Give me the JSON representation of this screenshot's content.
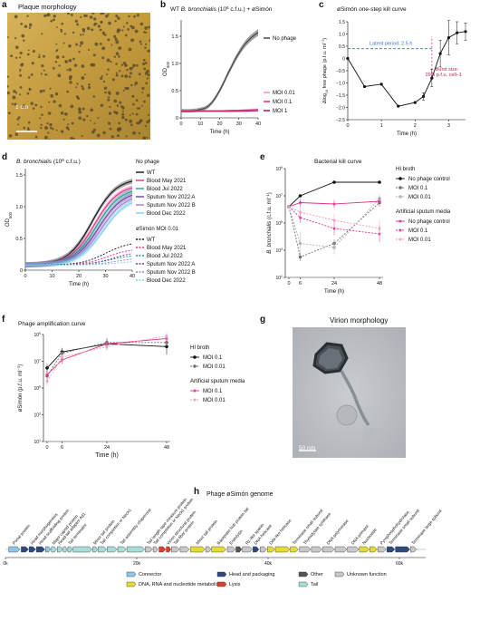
{
  "panels": {
    "a": {
      "letter": "a",
      "title": "Plaque morphology",
      "scale_label": "1 cm"
    },
    "b": {
      "letter": "b"
    },
    "c": {
      "letter": "c"
    },
    "d": {
      "letter": "d"
    },
    "e": {
      "letter": "e"
    },
    "f": {
      "letter": "f"
    },
    "g": {
      "letter": "g",
      "title": "Virion morphology",
      "scale_label": "50 nm"
    },
    "h": {
      "letter": "h"
    }
  },
  "colors": {
    "black": "#111111",
    "gray": "#7a7a7a",
    "lightgray": "#bdbdbd",
    "pink": "#e0338a",
    "lightpink": "#f29ac4",
    "magenta": "#c2185b",
    "dark_magenta": "#8b1a4a",
    "teal": "#1e9c8c",
    "purple": "#6b3fa0",
    "violet": "#9b7fd0",
    "lightblue": "#7fd0e8",
    "blue_dash": "#3a6fd8"
  },
  "chart_data": [
    {
      "id": "b",
      "type": "line",
      "title": "WT B. bronchialis (10^6 c.f.u.) + øSimón",
      "title_parts": [
        "WT ",
        "B. bronchialis",
        " (10",
        "6",
        " c.f.u.) + øSimón"
      ],
      "xlabel": "Time (h)",
      "ylabel": "OD600",
      "ylabel_main": "OD",
      "ylabel_sub": "600",
      "xlim": [
        0,
        40
      ],
      "ylim": [
        0,
        1.8
      ],
      "xticks": [
        "0",
        "10",
        "20",
        "30",
        "40"
      ],
      "yticks": [
        "0",
        "0.5",
        "1.0",
        "1.5"
      ],
      "legend_top": [
        "No phage"
      ],
      "legend_bottom": [
        "MOI 0.01",
        "MOI 0.1",
        "MOI 1"
      ],
      "series": [
        {
          "name": "No phage",
          "x": [
            0,
            4,
            8,
            12,
            14,
            16,
            18,
            20,
            22,
            24,
            26,
            28,
            30,
            32,
            34,
            36,
            38,
            40
          ],
          "y": [
            0.13,
            0.13,
            0.14,
            0.17,
            0.21,
            0.28,
            0.38,
            0.5,
            0.64,
            0.79,
            0.93,
            1.07,
            1.19,
            1.3,
            1.39,
            1.46,
            1.52,
            1.57
          ]
        },
        {
          "name": "MOI 0.01",
          "x": [
            0,
            10,
            20,
            30,
            40
          ],
          "y": [
            0.13,
            0.13,
            0.13,
            0.14,
            0.16
          ]
        },
        {
          "name": "MOI 0.1",
          "x": [
            0,
            10,
            20,
            30,
            40
          ],
          "y": [
            0.13,
            0.13,
            0.13,
            0.14,
            0.15
          ]
        },
        {
          "name": "MOI 1",
          "x": [
            0,
            10,
            20,
            30,
            40
          ],
          "y": [
            0.12,
            0.12,
            0.12,
            0.12,
            0.13
          ]
        }
      ]
    },
    {
      "id": "c",
      "type": "line",
      "title": "øSimón one-step kill curve",
      "xlabel": "Time (h)",
      "ylabel": "Δlog10 free phage (p.f.u. ml−1)",
      "xlim": [
        0,
        3.5
      ],
      "ylim": [
        -2.5,
        1.5
      ],
      "xticks": [
        "0",
        "1",
        "2",
        "3"
      ],
      "yticks": [
        "−2.5",
        "−2.0",
        "−1.5",
        "−1.0",
        "−0.5",
        "0",
        "0.5",
        "1.0",
        "1.5"
      ],
      "annotation_latent": "Latent period: 2.5 h",
      "annotation_burst_1": "Burst size:",
      "annotation_burst_2": "29.5 p.f.u. cell−1",
      "series": [
        {
          "name": "",
          "x": [
            0,
            0.5,
            1.0,
            1.5,
            2.0,
            2.25,
            2.5,
            2.75,
            3.0,
            3.25,
            3.5
          ],
          "y": [
            0,
            -1.15,
            -1.05,
            -1.95,
            -1.8,
            -1.55,
            -0.8,
            0.2,
            0.85,
            1.05,
            1.1
          ]
        }
      ]
    },
    {
      "id": "d",
      "type": "line",
      "title": "B. bronchialis (10^6 c.f.u.)",
      "xlabel": "Time (h)",
      "ylabel": "OD600",
      "xlim": [
        0,
        40
      ],
      "ylim": [
        0,
        1.6
      ],
      "xticks": [
        "0",
        "10",
        "20",
        "30",
        "40"
      ],
      "yticks": [
        "0",
        "0.5",
        "1.0",
        "1.5"
      ],
      "legend_group_1": "No phage",
      "legend_group_2": "øSimón MOI 0.01",
      "strains": [
        "WT",
        "Blood May 2021",
        "Blood Jul 2022",
        "Sputum Nov 2022 A",
        "Sputum Nov 2022 B",
        "Blood Dec 2022"
      ],
      "series": [
        {
          "name": "WT",
          "group": "No phage",
          "final": 1.45
        },
        {
          "name": "Blood May 2021",
          "group": "No phage",
          "final": 1.35
        },
        {
          "name": "Blood Jul 2022",
          "group": "No phage",
          "final": 1.3
        },
        {
          "name": "Sputum Nov 2022 A",
          "group": "No phage",
          "final": 1.25
        },
        {
          "name": "Sputum Nov 2022 B",
          "group": "No phage",
          "final": 1.2
        },
        {
          "name": "Blood Dec 2022",
          "group": "No phage",
          "final": 1.15
        },
        {
          "name": "WT",
          "group": "øSimón MOI 0.01",
          "final": 0.45
        },
        {
          "name": "Blood May 2021",
          "group": "øSimón MOI 0.01",
          "final": 0.35
        },
        {
          "name": "Blood Jul 2022",
          "group": "øSimón MOI 0.01",
          "final": 0.25
        },
        {
          "name": "Sputum Nov 2022 A",
          "group": "øSimón MOI 0.01",
          "final": 0.3
        },
        {
          "name": "Sputum Nov 2022 B",
          "group": "øSimón MOI 0.01",
          "final": 0.2
        },
        {
          "name": "Blood Dec 2022",
          "group": "øSimón MOI 0.01",
          "final": 0.15
        }
      ]
    },
    {
      "id": "e",
      "type": "line",
      "title": "Bacterial kill curve",
      "xlabel": "Time (h)",
      "ylabel": "B. bronchialis (c.f.u. ml−1)",
      "ylabel_italic": "B. bronchialis",
      "ylabel_rest": " (c.f.u. ml−1)",
      "xticks": [
        "0",
        "6",
        "24",
        "48"
      ],
      "yticks": [
        "10^1",
        "10^3",
        "10^5",
        "10^7",
        "10^9"
      ],
      "legend_group_1": "HI broth",
      "legend_group_2": "Artificial sputum media",
      "series": [
        {
          "name": "No phage control",
          "group": "HI broth",
          "x": [
            0,
            6,
            24,
            48
          ],
          "log10y": [
            6.2,
            7.0,
            8.0,
            8.0
          ]
        },
        {
          "name": "MOI 0.1",
          "group": "HI broth",
          "x": [
            0,
            6,
            24,
            48
          ],
          "log10y": [
            6.2,
            2.5,
            3.5,
            6.5
          ]
        },
        {
          "name": "MOI 0.01",
          "group": "HI broth",
          "x": [
            0,
            6,
            24,
            48
          ],
          "log10y": [
            6.2,
            3.5,
            3.2,
            6.8
          ]
        },
        {
          "name": "No phage control",
          "group": "Artificial sputum media",
          "x": [
            0,
            6,
            24,
            48
          ],
          "log10y": [
            6.2,
            6.5,
            6.4,
            6.6
          ]
        },
        {
          "name": "MOI 0.1",
          "group": "Artificial sputum media",
          "x": [
            0,
            6,
            24,
            48
          ],
          "log10y": [
            6.2,
            5.4,
            4.6,
            4.2
          ]
        },
        {
          "name": "MOI 0.01",
          "group": "Artificial sputum media",
          "x": [
            0,
            6,
            24,
            48
          ],
          "log10y": [
            6.2,
            5.8,
            5.2,
            4.6
          ]
        }
      ]
    },
    {
      "id": "f",
      "type": "line",
      "title": "Phage amplification curve",
      "xlabel": "Time (h)",
      "ylabel": "øSimón (p.f.u. ml−1)",
      "xticks": [
        "0",
        "6",
        "24",
        "48"
      ],
      "yticks": [
        "10^1",
        "10^3",
        "10^5",
        "10^7",
        "10^9"
      ],
      "legend_group_1": "HI broth",
      "legend_group_2": "Artificial sputum media",
      "series": [
        {
          "name": "MOI 0.1",
          "group": "HI broth",
          "x": [
            0,
            6,
            24,
            48
          ],
          "log10y": [
            6.5,
            7.7,
            8.3,
            8.1
          ]
        },
        {
          "name": "MOI 0.01",
          "group": "HI broth",
          "x": [
            0,
            6,
            24,
            48
          ],
          "log10y": [
            5.9,
            7.6,
            8.4,
            8.4
          ]
        },
        {
          "name": "MOI 0.1",
          "group": "Artificial sputum media",
          "x": [
            0,
            6,
            24,
            48
          ],
          "log10y": [
            6.0,
            7.1,
            8.3,
            8.7
          ]
        },
        {
          "name": "MOI 0.01",
          "group": "Artificial sputum media",
          "x": [
            0,
            6,
            24,
            48
          ],
          "log10y": [
            5.5,
            7.3,
            8.1,
            8.9
          ]
        }
      ]
    }
  ],
  "genome": {
    "title": "Phage øSimón genome",
    "axis_ticks": [
      "0k",
      "20k",
      "40k",
      "60k"
    ],
    "labels": [
      "Portal protein",
      "Head morphogenesis",
      "Head scaffolding protein",
      "Major capsid protein",
      "Head-tail adaptor Ad1",
      "Tail terminator",
      "Minor tail protein",
      "Tail completion or Neck1",
      "Tail assembly chaperone",
      "Tail length tape measure protein",
      "Tail completion or Neck1 protein",
      "Virion structural protein",
      "Tail fiber protein",
      "Minor tail protein",
      "Baseplate hub protein tail",
      "Endolysin",
      "Rz-like spanin",
      "DNA helicase",
      "Dda-like helicase",
      "Terminase small subunit",
      "Thymidylate synthase",
      "DNA polymerase",
      "DNA primase",
      "Nucleotide",
      "Pyrophosphohydrolase",
      "Terminase small subunit",
      "Terminase large subunit"
    ],
    "genes": [
      {
        "cat": "connector",
        "start": 0.5,
        "end": 2.2
      },
      {
        "cat": "head",
        "start": 2.4,
        "end": 3.5
      },
      {
        "cat": "head",
        "start": 3.6,
        "end": 4.6
      },
      {
        "cat": "head",
        "start": 4.7,
        "end": 6.0
      },
      {
        "cat": "connector",
        "start": 6.1,
        "end": 6.9
      },
      {
        "cat": "tail",
        "start": 7.0,
        "end": 7.8
      },
      {
        "cat": "tail",
        "start": 7.9,
        "end": 8.7
      },
      {
        "cat": "tail",
        "start": 8.8,
        "end": 9.4
      },
      {
        "cat": "tail",
        "start": 9.5,
        "end": 10.2
      },
      {
        "cat": "tail",
        "start": 10.3,
        "end": 13.2
      },
      {
        "cat": "tail",
        "start": 13.3,
        "end": 14.0
      },
      {
        "cat": "tail",
        "start": 14.1,
        "end": 15.4
      },
      {
        "cat": "tail",
        "start": 15.5,
        "end": 17.0
      },
      {
        "cat": "tail",
        "start": 17.1,
        "end": 18.4
      },
      {
        "cat": "tail",
        "start": 18.5,
        "end": 21.2
      },
      {
        "cat": "unknown",
        "start": 21.3,
        "end": 22.4
      },
      {
        "cat": "unknown",
        "start": 22.5,
        "end": 23.2
      },
      {
        "cat": "lysis",
        "start": 23.4,
        "end": 24.4
      },
      {
        "cat": "lysis",
        "start": 24.5,
        "end": 25.2
      },
      {
        "cat": "unknown",
        "start": 25.3,
        "end": 26.5
      },
      {
        "cat": "unknown",
        "start": 26.6,
        "end": 28.0
      },
      {
        "cat": "dna",
        "start": 28.2,
        "end": 30.4
      },
      {
        "cat": "unknown",
        "start": 30.5,
        "end": 31.3
      },
      {
        "cat": "dna",
        "start": 31.4,
        "end": 33.6
      },
      {
        "cat": "unknown",
        "start": 33.8,
        "end": 35.0
      },
      {
        "cat": "other",
        "start": 35.1,
        "end": 36.0
      },
      {
        "cat": "unknown",
        "start": 36.1,
        "end": 37.6
      },
      {
        "cat": "head",
        "start": 37.7,
        "end": 38.6
      },
      {
        "cat": "unknown",
        "start": 38.8,
        "end": 39.8
      },
      {
        "cat": "dna",
        "start": 39.9,
        "end": 41.0
      },
      {
        "cat": "dna",
        "start": 41.1,
        "end": 43.3
      },
      {
        "cat": "dna",
        "start": 43.4,
        "end": 44.6
      },
      {
        "cat": "unknown",
        "start": 44.8,
        "end": 46.5
      },
      {
        "cat": "unknown",
        "start": 46.6,
        "end": 48.2
      },
      {
        "cat": "unknown",
        "start": 48.3,
        "end": 50.1
      },
      {
        "cat": "unknown",
        "start": 50.2,
        "end": 52.0
      },
      {
        "cat": "unknown",
        "start": 52.1,
        "end": 53.8
      },
      {
        "cat": "dna",
        "start": 53.9,
        "end": 55.4
      },
      {
        "cat": "dna",
        "start": 55.5,
        "end": 56.6
      },
      {
        "cat": "unknown",
        "start": 56.7,
        "end": 58.0
      },
      {
        "cat": "head",
        "start": 58.1,
        "end": 59.3
      },
      {
        "cat": "head",
        "start": 59.4,
        "end": 61.6
      },
      {
        "cat": "unknown",
        "start": 61.7,
        "end": 62.6
      }
    ],
    "legend": [
      {
        "cat": "connector",
        "label": "Connector",
        "color": "#8ec6e6"
      },
      {
        "cat": "head",
        "label": "Head and packaging",
        "color": "#2e4a7a"
      },
      {
        "cat": "other",
        "label": "Other",
        "color": "#555555"
      },
      {
        "cat": "unknown",
        "label": "Unknown function",
        "color": "#c8c8c8"
      },
      {
        "cat": "dna",
        "label": "DNA, RNA and nucleotide metabolism",
        "color": "#e6d93a"
      },
      {
        "cat": "lysis",
        "label": "Lysis",
        "color": "#d8412f"
      },
      {
        "cat": "tail",
        "label": "Tail",
        "color": "#a8dcd8"
      }
    ]
  }
}
